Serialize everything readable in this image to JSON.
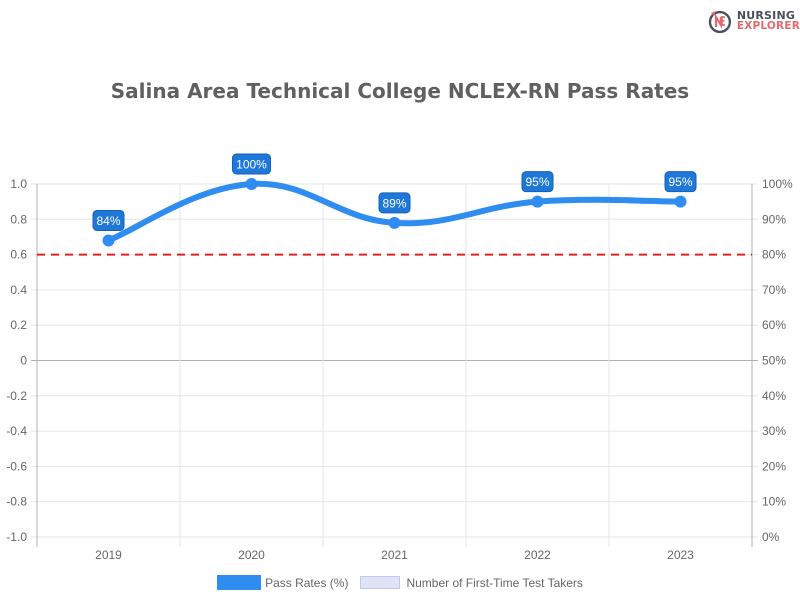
{
  "brand": {
    "line1": "NURSING",
    "line2": "EXPLORER",
    "mark": "NE"
  },
  "colors": {
    "line": "#2f8cf0",
    "label_bg": "#1f77d8",
    "threshold": "#e02020",
    "grid": "#e6e6e6",
    "axis": "#b0b0b0",
    "takers_fill": "#dfe3f8"
  },
  "chart_data": {
    "type": "line",
    "title": "Salina Area Technical College NCLEX-RN Pass Rates",
    "categories": [
      "2019",
      "2020",
      "2021",
      "2022",
      "2023"
    ],
    "series": [
      {
        "name": "Pass Rates (%)",
        "values": [
          84,
          100,
          89,
          95,
          95
        ],
        "labels": [
          "84%",
          "100%",
          "89%",
          "95%",
          "95%"
        ],
        "axis": "right"
      },
      {
        "name": "Number of First-Time Test Takers",
        "values": [],
        "axis": "left"
      }
    ],
    "left_axis": {
      "ticks": [
        "1.0",
        "0.8",
        "0.6",
        "0.4",
        "0.2",
        "0",
        "-0.2",
        "-0.4",
        "-0.6",
        "-0.8",
        "-1.0"
      ],
      "ylim": [
        -1.0,
        1.0
      ]
    },
    "right_axis": {
      "ticks": [
        "100%",
        "90%",
        "80%",
        "70%",
        "60%",
        "50%",
        "40%",
        "30%",
        "20%",
        "10%",
        "0%"
      ],
      "ylim": [
        0,
        100
      ]
    },
    "threshold": {
      "value": 80,
      "style": "dashed",
      "color": "#e02020"
    },
    "xlabel": "",
    "ylabel": "",
    "grid": true,
    "legend_position": "bottom"
  },
  "legend": [
    {
      "label": "Pass Rates (%)"
    },
    {
      "label": "Number of First-Time Test Takers"
    }
  ]
}
